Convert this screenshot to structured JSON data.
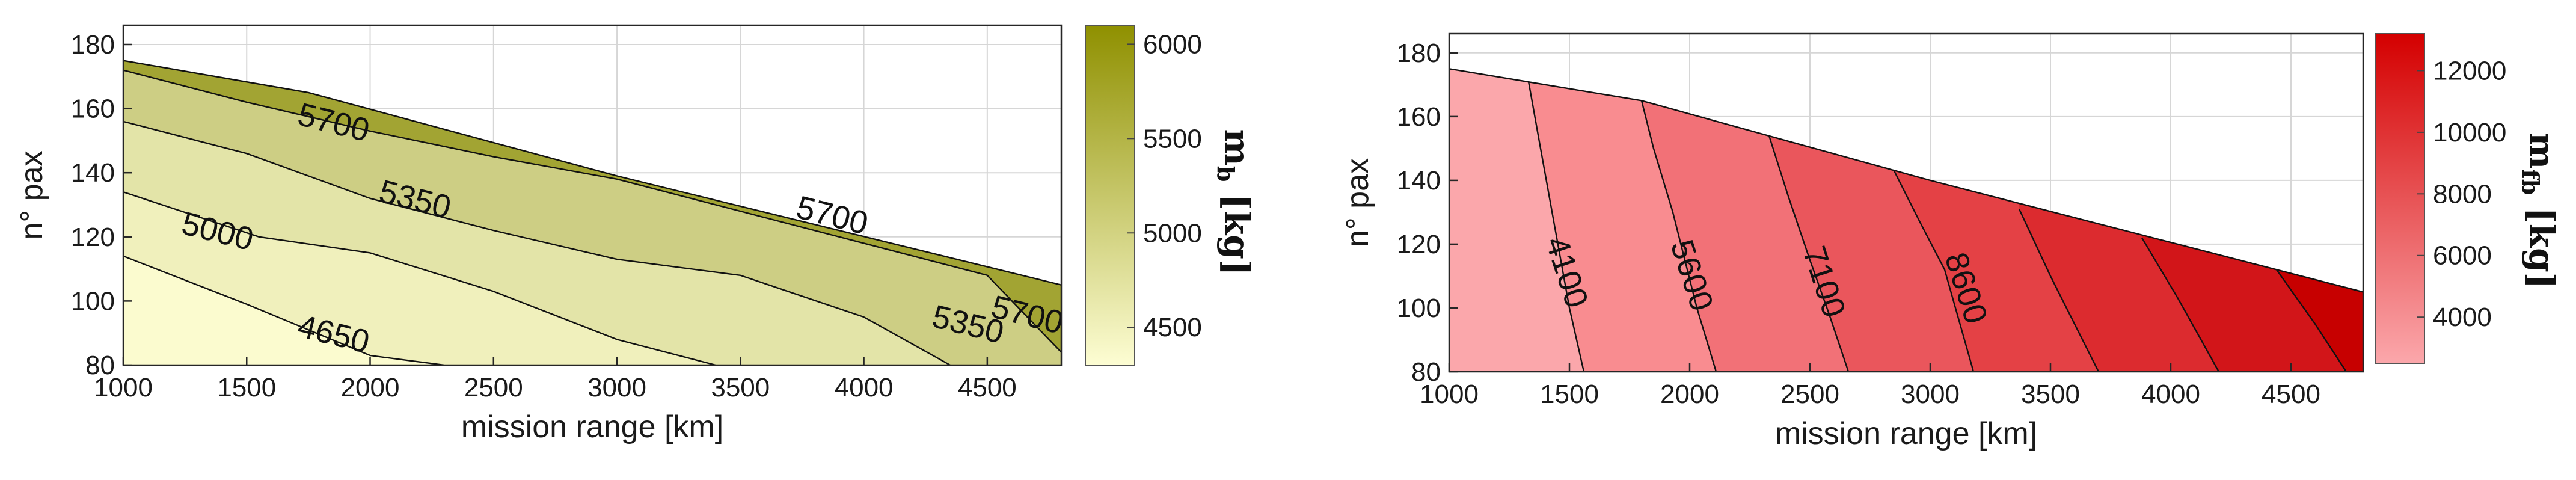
{
  "chart_data": [
    {
      "type": "contour",
      "xlabel": "mission range [km]",
      "ylabel": "n° pax",
      "xlim": [
        1000,
        4800
      ],
      "ylim": [
        80,
        186
      ],
      "xticks": [
        "1000",
        "1500",
        "2000",
        "2500",
        "3000",
        "3500",
        "4000",
        "4500"
      ],
      "yticks": [
        "80",
        "100",
        "120",
        "140",
        "160",
        "180"
      ],
      "grid": true,
      "feasible_boundary": [
        [
          1000,
          175
        ],
        [
          1750,
          165
        ],
        [
          3000,
          139
        ],
        [
          4800,
          105
        ]
      ],
      "filled_levels": [
        {
          "level": 4450,
          "color": "#fbfbcf"
        },
        {
          "level": 4650,
          "color": "#f0f0bc"
        },
        {
          "level": 5000,
          "color": "#e3e4a8"
        },
        {
          "level": 5350,
          "color": "#cdce84"
        },
        {
          "level": 5525,
          "color": "#bdbf6a"
        },
        {
          "level": 5700,
          "color": "#a2a433"
        }
      ],
      "contours": [
        {
          "level": 4650,
          "label": "4650",
          "label_at": [
            1850,
            89
          ],
          "points": [
            [
              1000,
              114
            ],
            [
              1500,
              99
            ],
            [
              2000,
              83
            ],
            [
              2300,
              80
            ]
          ]
        },
        {
          "level": 5000,
          "label": "5000",
          "label_at": [
            1380,
            121
          ],
          "points": [
            [
              1000,
              134
            ],
            [
              1550,
              120
            ],
            [
              2000,
              115
            ],
            [
              2500,
              103
            ],
            [
              3000,
              88
            ],
            [
              3400,
              80
            ]
          ]
        },
        {
          "level": 5350,
          "label": "5350",
          "label_at": [
            2180,
            131
          ],
          "points": [
            [
              1000,
              156
            ],
            [
              1500,
              146
            ],
            [
              2000,
              132
            ],
            [
              2500,
              122
            ],
            [
              3000,
              113
            ],
            [
              3500,
              108
            ],
            [
              4000,
              95
            ],
            [
              4350,
              80
            ]
          ]
        },
        {
          "level": 5350,
          "label": "5350",
          "label_at": [
            4420,
            92
          ],
          "points": []
        },
        {
          "level": 5700,
          "label": "5700",
          "label_at": [
            1850,
            155
          ],
          "points": [
            [
              1000,
              172
            ],
            [
              1500,
              162
            ],
            [
              2000,
              153
            ],
            [
              2500,
              145
            ],
            [
              3000,
              138
            ],
            [
              3500,
              128
            ],
            [
              4000,
              118
            ],
            [
              4500,
              108
            ],
            [
              4800,
              84
            ]
          ]
        },
        {
          "level": 5700,
          "label": "5700",
          "label_at": [
            3870,
            126
          ],
          "points": []
        },
        {
          "level": 5700,
          "label": "5700",
          "label_at": [
            4660,
            95
          ],
          "points": []
        }
      ],
      "colorbar": {
        "label": "mb [kg]",
        "label_text": "m",
        "label_sub": "b",
        "label_unit": " [kg]",
        "range": [
          4300,
          6100
        ],
        "ticks": [
          "6000",
          "5500",
          "5000",
          "4500"
        ],
        "tick_values": [
          6000,
          5500,
          5000,
          4500
        ],
        "color_low": "#fdfdd3",
        "color_high": "#8f9000"
      }
    },
    {
      "type": "contour",
      "xlabel": "mission range [km]",
      "ylabel": "n° pax",
      "xlim": [
        1000,
        4800
      ],
      "ylim": [
        80,
        186
      ],
      "xticks": [
        "1000",
        "1500",
        "2000",
        "2500",
        "3000",
        "3500",
        "4000",
        "4500"
      ],
      "yticks": [
        "80",
        "100",
        "120",
        "140",
        "160",
        "180"
      ],
      "grid": true,
      "feasible_boundary": [
        [
          1000,
          175
        ],
        [
          1800,
          165
        ],
        [
          3000,
          140
        ],
        [
          4800,
          105
        ]
      ],
      "filled_levels": [
        {
          "level": 2600,
          "color": "#fba7ab"
        },
        {
          "level": 4100,
          "color": "#f98c90"
        },
        {
          "level": 5600,
          "color": "#f27177"
        },
        {
          "level": 7100,
          "color": "#ea565c"
        },
        {
          "level": 8600,
          "color": "#e44145"
        },
        {
          "level": 10100,
          "color": "#dc2b2f"
        },
        {
          "level": 11600,
          "color": "#d21519"
        },
        {
          "level": 13100,
          "color": "#c70000"
        }
      ],
      "contours": [
        {
          "level": 4100,
          "label": "4100",
          "label_at": [
            1480,
            111
          ],
          "points": [
            [
              1330,
              171
            ],
            [
              1380,
              150
            ],
            [
              1440,
              125
            ],
            [
              1500,
              100
            ],
            [
              1560,
              80
            ]
          ]
        },
        {
          "level": 5600,
          "label": "5600",
          "label_at": [
            2000,
            110
          ],
          "points": [
            [
              1800,
              165
            ],
            [
              1850,
              150
            ],
            [
              1930,
              130
            ],
            [
              2030,
              100
            ],
            [
              2110,
              80
            ]
          ]
        },
        {
          "level": 7100,
          "label": "7100",
          "label_at": [
            2550,
            108
          ],
          "points": [
            [
              2330,
              154
            ],
            [
              2410,
              135
            ],
            [
              2500,
              115
            ],
            [
              2580,
              98
            ],
            [
              2660,
              80
            ]
          ]
        },
        {
          "level": 8600,
          "label": "8600",
          "label_at": [
            3140,
            106
          ],
          "points": [
            [
              2850,
              143
            ],
            [
              2950,
              128
            ],
            [
              3060,
              112
            ],
            [
              3180,
              80
            ]
          ]
        },
        {
          "level": 10100,
          "label": "",
          "label_at": null,
          "points": [
            [
              3370,
              131
            ],
            [
              3500,
              110
            ],
            [
              3700,
              80
            ]
          ]
        },
        {
          "level": 11600,
          "label": "",
          "label_at": null,
          "points": [
            [
              3880,
              122
            ],
            [
              4030,
              103
            ],
            [
              4200,
              80
            ]
          ]
        },
        {
          "level": 13100,
          "label": "",
          "label_at": null,
          "points": [
            [
              4440,
              112
            ],
            [
              4600,
              95
            ],
            [
              4730,
              80
            ]
          ]
        }
      ],
      "colorbar": {
        "label": "mfb [kg]",
        "label_text": "m",
        "label_sub": "fb",
        "label_unit": " [kg]",
        "range": [
          2500,
          13200
        ],
        "ticks": [
          "12000",
          "10000",
          "8000",
          "6000",
          "4000"
        ],
        "tick_values": [
          12000,
          10000,
          8000,
          6000,
          4000
        ],
        "color_low": "#fba7ab",
        "color_high": "#d40000"
      }
    }
  ]
}
